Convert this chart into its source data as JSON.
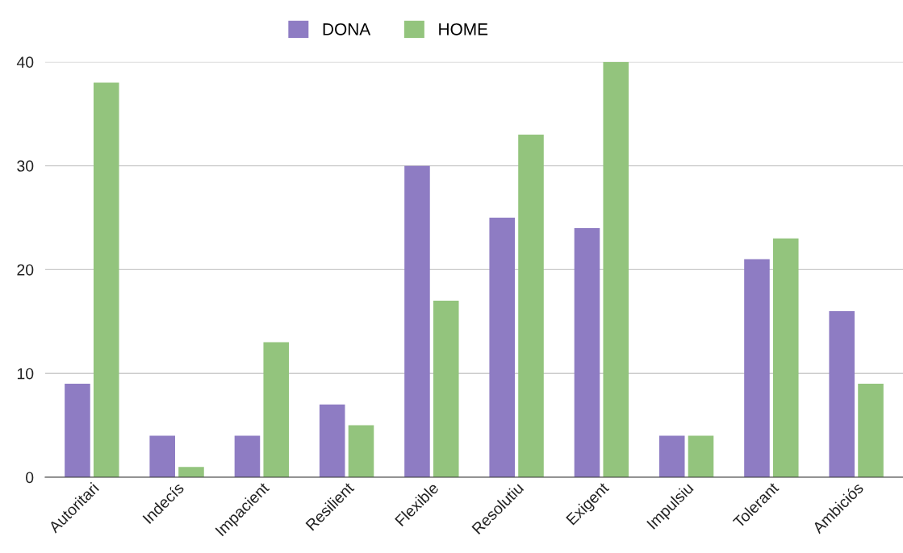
{
  "chart_data": {
    "type": "bar",
    "categories": [
      "Autoritari",
      "Indecís",
      "Impacient",
      "Resilient",
      "Flexible",
      "Resolutiu",
      "Exigent",
      "Impulsiu",
      "Tolerant",
      "Ambiciós"
    ],
    "series": [
      {
        "name": "DONA",
        "color": "#8e7cc3",
        "values": [
          9,
          4,
          4,
          7,
          30,
          25,
          24,
          4,
          21,
          16
        ]
      },
      {
        "name": "HOME",
        "color": "#93c47d",
        "values": [
          38,
          1,
          13,
          5,
          17,
          33,
          40,
          4,
          23,
          9
        ]
      }
    ],
    "ylim": [
      0,
      40
    ],
    "yticks": [
      0,
      10,
      20,
      30,
      40
    ],
    "grid": "y",
    "legend": "top"
  }
}
